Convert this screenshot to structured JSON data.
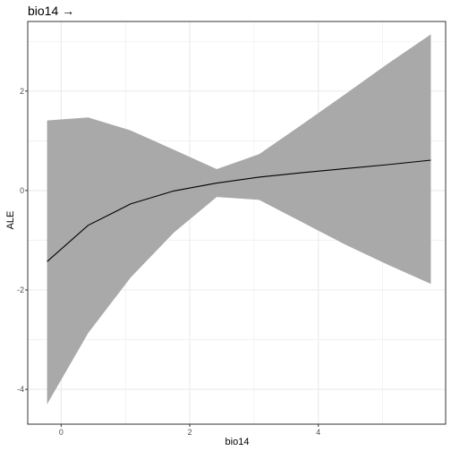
{
  "chart_data": {
    "type": "line",
    "title": "bio14 →",
    "xlabel": "bio14",
    "ylabel": "ALE",
    "xlim": [
      -0.52,
      5.98
    ],
    "ylim": [
      -4.7,
      3.4
    ],
    "x_ticks": [
      0,
      2,
      4
    ],
    "y_ticks": [
      -4,
      -2,
      0,
      2
    ],
    "x_minor_ticks": [
      1,
      3,
      5
    ],
    "y_minor_ticks": [
      -3,
      -1,
      1,
      3
    ],
    "grid": true,
    "series": [
      {
        "x": [
          -0.22,
          0.42,
          1.08,
          1.75,
          2.42,
          3.08,
          3.75,
          4.42,
          5.08,
          5.75
        ],
        "y": [
          -1.43,
          -0.7,
          -0.27,
          -0.01,
          0.15,
          0.27,
          0.36,
          0.44,
          0.52,
          0.61
        ],
        "lower": [
          -4.3,
          -2.87,
          -1.75,
          -0.85,
          -0.13,
          -0.19,
          -0.64,
          -1.09,
          -1.49,
          -1.88
        ],
        "upper": [
          1.41,
          1.47,
          1.21,
          0.82,
          0.43,
          0.73,
          1.33,
          1.94,
          2.55,
          3.14
        ]
      }
    ],
    "colors": {
      "line": "#000000",
      "ribbon": "#a9a9a9",
      "grid": "#ebebeb",
      "panel_border": "#333333",
      "tick_label": "#4d4d4d"
    }
  }
}
